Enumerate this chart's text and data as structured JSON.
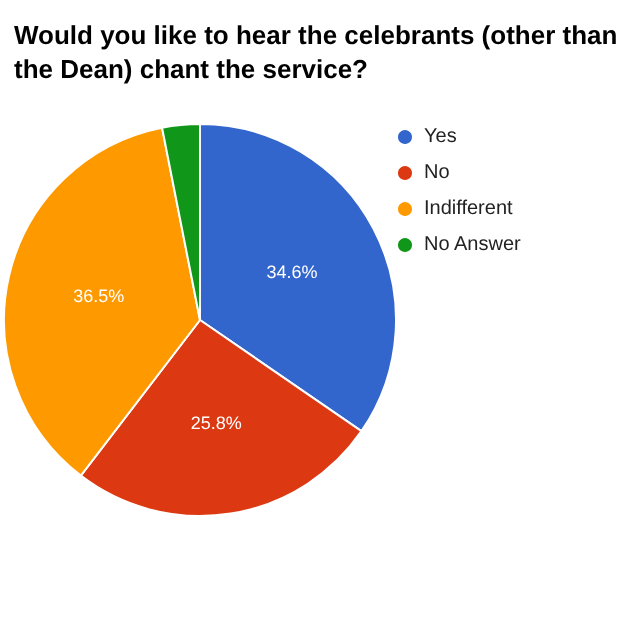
{
  "chart_data": {
    "type": "pie",
    "title": "Would you like to hear the celebrants (other than the Dean) chant the service?",
    "categories": [
      "Yes",
      "No",
      "Indifferent",
      "No Answer"
    ],
    "values": [
      34.6,
      25.8,
      36.5,
      3.1
    ],
    "colors": [
      "#3366cc",
      "#dc3912",
      "#ff9900",
      "#109618"
    ],
    "value_labels": [
      "34.6%",
      "25.8%",
      "36.5%",
      null
    ],
    "legend": "right"
  }
}
